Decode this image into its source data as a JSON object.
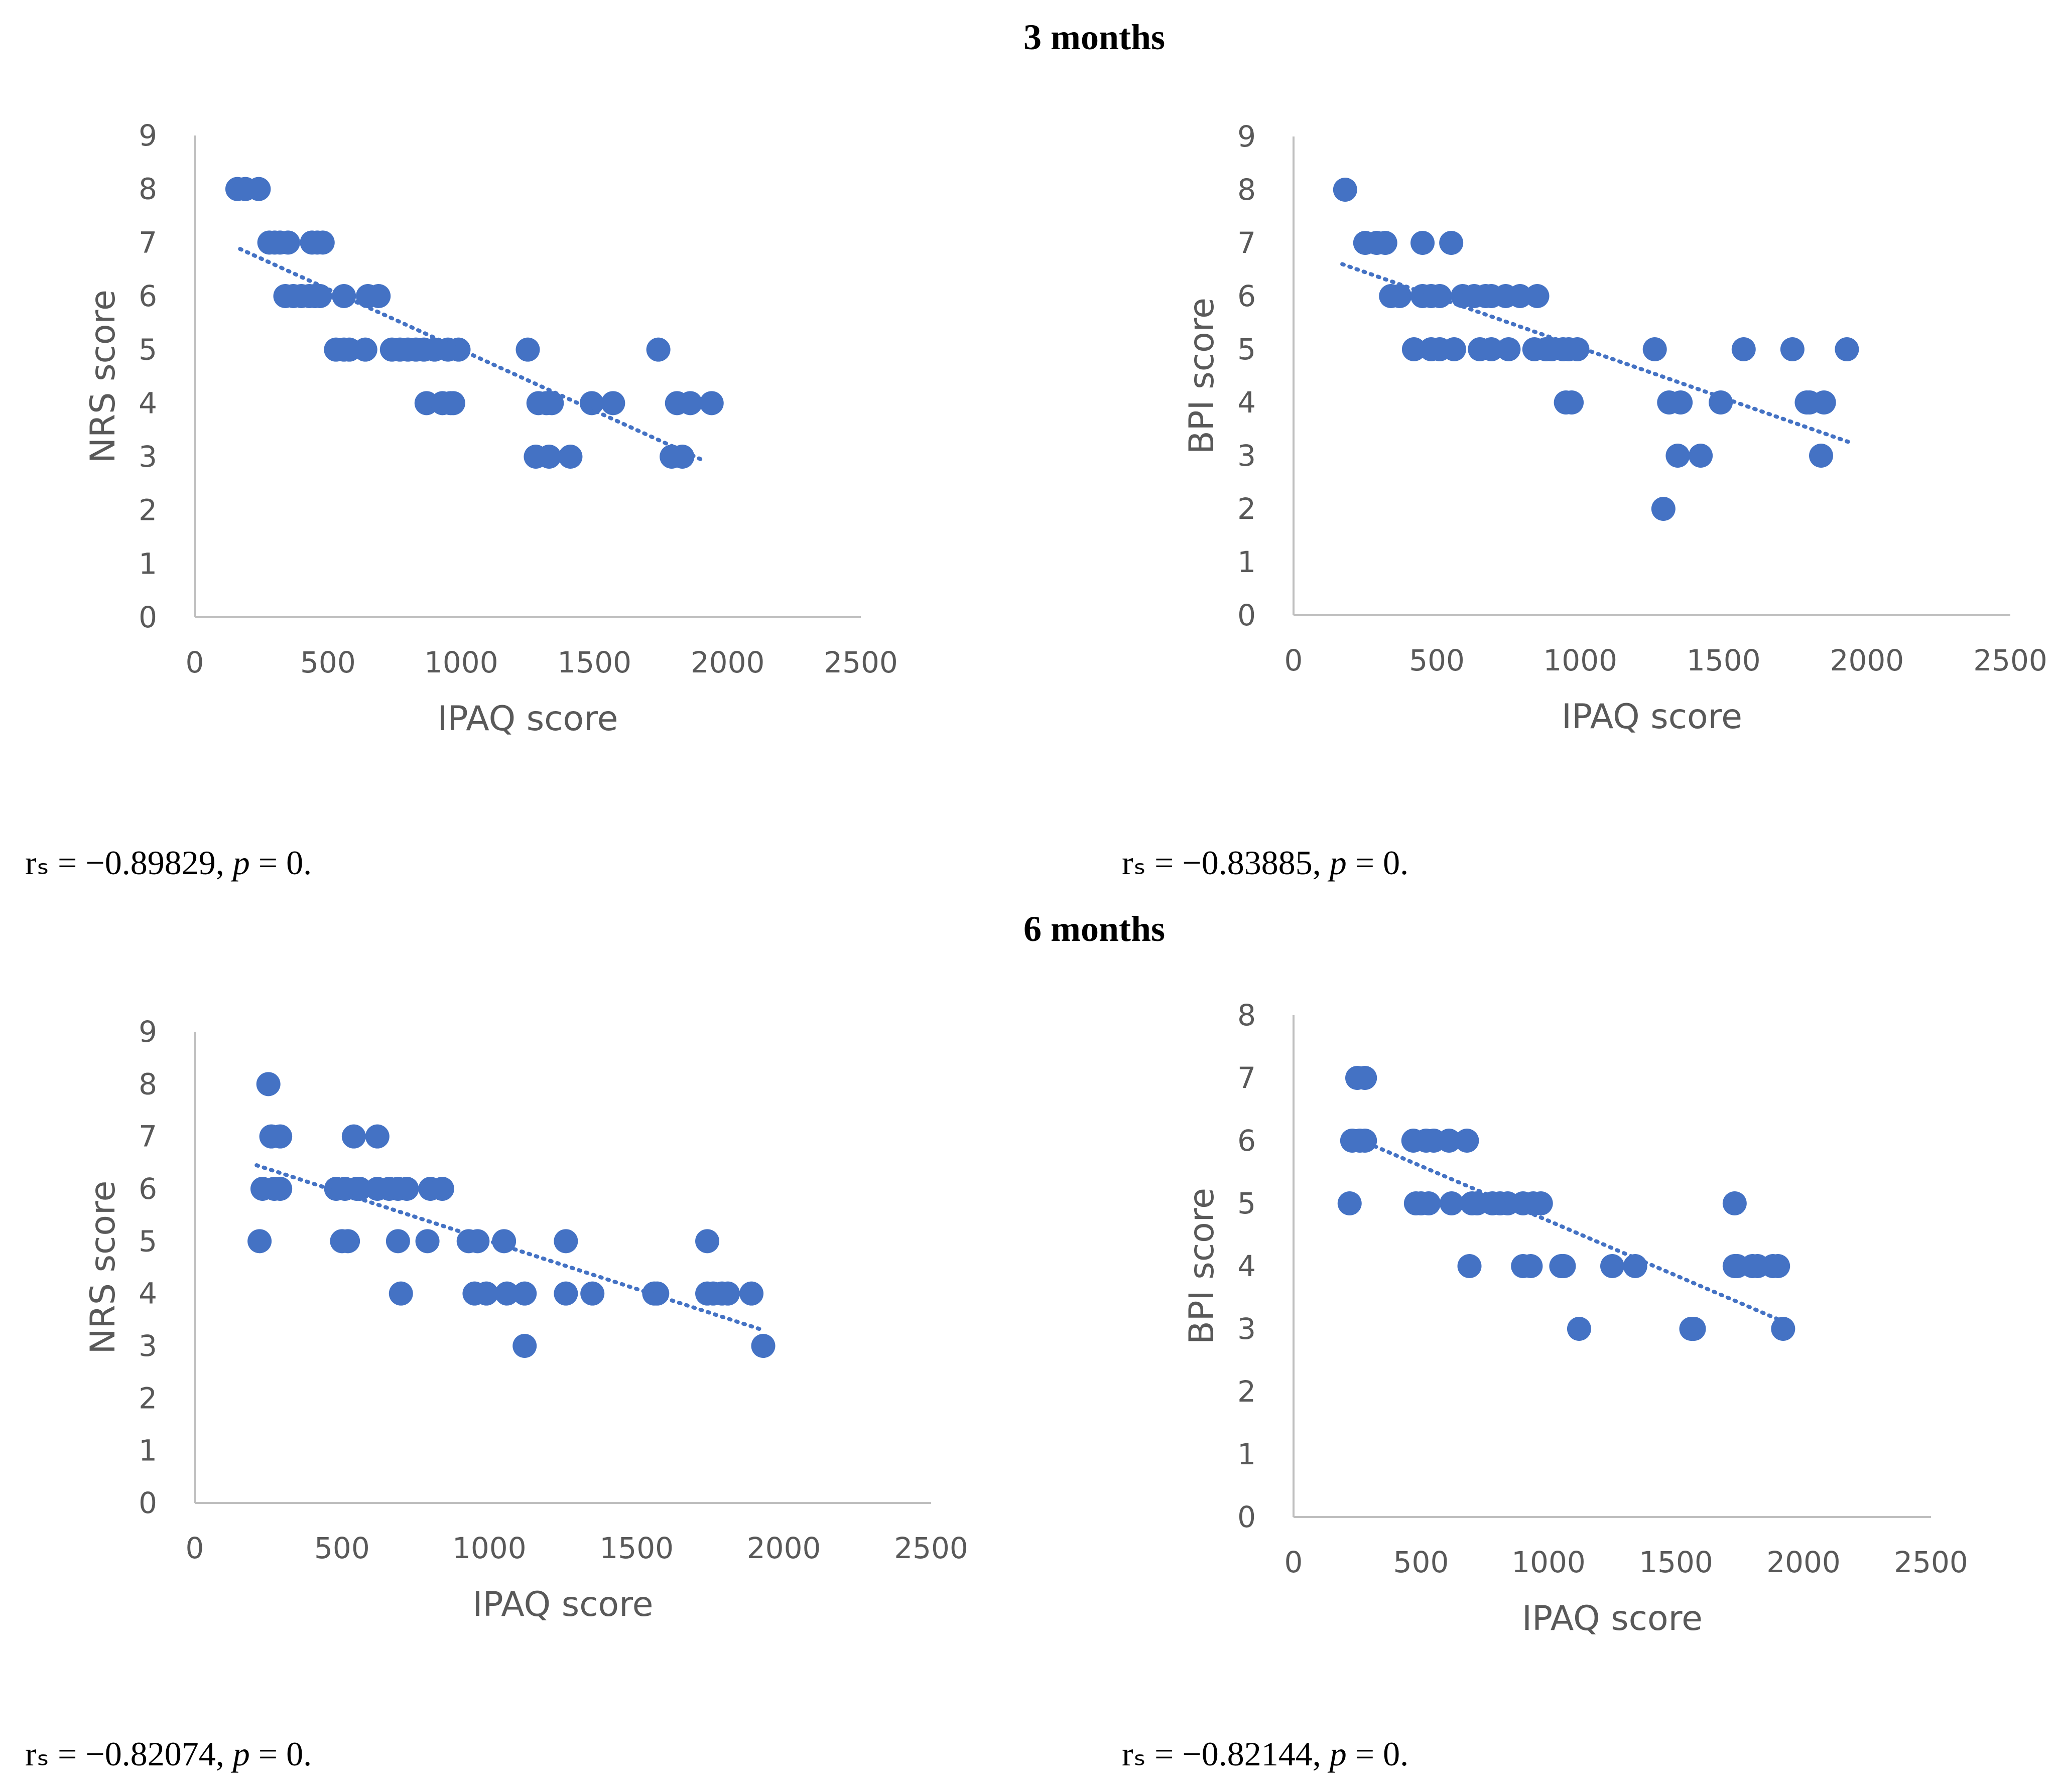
{
  "sections": [
    {
      "title": "3 months"
    },
    {
      "title": "6 months"
    }
  ],
  "colors": {
    "point": "#4472C4",
    "axis": "#BFBFBF",
    "trend": "#4472C4",
    "text": "#595959"
  },
  "chart_data": [
    {
      "type": "scatter",
      "section": "3 months",
      "xlabel": "IPAQ score",
      "ylabel": "NRS score",
      "xlim": [
        0,
        2500
      ],
      "ylim": [
        0,
        9
      ],
      "xticks": [
        0,
        500,
        1000,
        1500,
        2000,
        2500
      ],
      "yticks": [
        0,
        1,
        2,
        3,
        4,
        5,
        6,
        7,
        8,
        9
      ],
      "trendline": {
        "style": "dotted",
        "x": [
          170,
          1900
        ],
        "y": [
          6.88,
          2.95
        ]
      },
      "points": [
        [
          160,
          8
        ],
        [
          190,
          8
        ],
        [
          240,
          8
        ],
        [
          280,
          7
        ],
        [
          300,
          7
        ],
        [
          320,
          7
        ],
        [
          350,
          7
        ],
        [
          340,
          6
        ],
        [
          370,
          6
        ],
        [
          400,
          6
        ],
        [
          430,
          6
        ],
        [
          450,
          6
        ],
        [
          470,
          6
        ],
        [
          440,
          7
        ],
        [
          460,
          7
        ],
        [
          480,
          7
        ],
        [
          530,
          5
        ],
        [
          560,
          6
        ],
        [
          560,
          5
        ],
        [
          580,
          5
        ],
        [
          640,
          5
        ],
        [
          650,
          6
        ],
        [
          690,
          6
        ],
        [
          740,
          5
        ],
        [
          770,
          5
        ],
        [
          800,
          5
        ],
        [
          830,
          5
        ],
        [
          860,
          5
        ],
        [
          870,
          4
        ],
        [
          900,
          5
        ],
        [
          930,
          4
        ],
        [
          950,
          5
        ],
        [
          960,
          4
        ],
        [
          970,
          4
        ],
        [
          990,
          5
        ],
        [
          1250,
          5
        ],
        [
          1280,
          3
        ],
        [
          1290,
          4
        ],
        [
          1320,
          4
        ],
        [
          1330,
          3
        ],
        [
          1340,
          4
        ],
        [
          1410,
          3
        ],
        [
          1490,
          4
        ],
        [
          1570,
          4
        ],
        [
          1740,
          5
        ],
        [
          1790,
          3
        ],
        [
          1810,
          4
        ],
        [
          1830,
          3
        ],
        [
          1860,
          4
        ],
        [
          1940,
          4
        ]
      ],
      "stat": {
        "label": "rₛ = −0.89829, ",
        "p_symbol": "p",
        "p_value": " = 0."
      }
    },
    {
      "type": "scatter",
      "section": "3 months",
      "xlabel": "IPAQ score",
      "ylabel": "BPI score",
      "xlim": [
        0,
        2500
      ],
      "ylim": [
        0,
        9
      ],
      "xticks": [
        0,
        500,
        1000,
        1500,
        2000,
        2500
      ],
      "yticks": [
        0,
        1,
        2,
        3,
        4,
        5,
        6,
        7,
        8,
        9
      ],
      "trendline": {
        "style": "dotted",
        "x": [
          170,
          1940
        ],
        "y": [
          6.6,
          3.25
        ]
      },
      "points": [
        [
          180,
          8
        ],
        [
          250,
          7
        ],
        [
          290,
          7
        ],
        [
          320,
          7
        ],
        [
          340,
          6
        ],
        [
          370,
          6
        ],
        [
          420,
          5
        ],
        [
          450,
          7
        ],
        [
          450,
          6
        ],
        [
          480,
          6
        ],
        [
          480,
          5
        ],
        [
          510,
          6
        ],
        [
          510,
          5
        ],
        [
          550,
          7
        ],
        [
          560,
          5
        ],
        [
          590,
          6
        ],
        [
          630,
          6
        ],
        [
          650,
          5
        ],
        [
          670,
          6
        ],
        [
          690,
          6
        ],
        [
          690,
          5
        ],
        [
          740,
          6
        ],
        [
          750,
          5
        ],
        [
          790,
          6
        ],
        [
          840,
          5
        ],
        [
          850,
          6
        ],
        [
          880,
          5
        ],
        [
          900,
          5
        ],
        [
          940,
          5
        ],
        [
          950,
          4
        ],
        [
          960,
          5
        ],
        [
          970,
          4
        ],
        [
          990,
          5
        ],
        [
          1260,
          5
        ],
        [
          1290,
          2
        ],
        [
          1310,
          4
        ],
        [
          1340,
          3
        ],
        [
          1350,
          4
        ],
        [
          1420,
          3
        ],
        [
          1490,
          4
        ],
        [
          1570,
          5
        ],
        [
          1740,
          5
        ],
        [
          1790,
          4
        ],
        [
          1800,
          4
        ],
        [
          1840,
          3
        ],
        [
          1850,
          4
        ],
        [
          1930,
          5
        ]
      ],
      "stat": {
        "label": "rₛ = −0.83885, ",
        "p_symbol": "p",
        "p_value": " = 0."
      }
    },
    {
      "type": "scatter",
      "section": "6 months",
      "xlabel": "IPAQ score",
      "ylabel": "NRS score",
      "xlim": [
        0,
        2500
      ],
      "ylim": [
        0,
        9
      ],
      "xticks": [
        0,
        500,
        1000,
        1500,
        2000,
        2500
      ],
      "yticks": [
        0,
        1,
        2,
        3,
        4,
        5,
        6,
        7,
        8,
        9
      ],
      "trendline": {
        "style": "dotted",
        "x": [
          210,
          1930
        ],
        "y": [
          6.45,
          3.3
        ]
      },
      "points": [
        [
          220,
          5
        ],
        [
          230,
          6
        ],
        [
          250,
          8
        ],
        [
          260,
          7
        ],
        [
          270,
          6
        ],
        [
          290,
          7
        ],
        [
          290,
          6
        ],
        [
          480,
          6
        ],
        [
          500,
          5
        ],
        [
          510,
          6
        ],
        [
          520,
          5
        ],
        [
          540,
          7
        ],
        [
          550,
          6
        ],
        [
          560,
          6
        ],
        [
          620,
          7
        ],
        [
          620,
          6
        ],
        [
          660,
          6
        ],
        [
          690,
          5
        ],
        [
          690,
          6
        ],
        [
          700,
          4
        ],
        [
          720,
          6
        ],
        [
          790,
          5
        ],
        [
          800,
          6
        ],
        [
          840,
          6
        ],
        [
          930,
          5
        ],
        [
          950,
          4
        ],
        [
          960,
          5
        ],
        [
          990,
          4
        ],
        [
          1050,
          5
        ],
        [
          1060,
          4
        ],
        [
          1120,
          3
        ],
        [
          1120,
          4
        ],
        [
          1260,
          5
        ],
        [
          1260,
          4
        ],
        [
          1350,
          4
        ],
        [
          1560,
          4
        ],
        [
          1570,
          4
        ],
        [
          1740,
          5
        ],
        [
          1740,
          4
        ],
        [
          1760,
          4
        ],
        [
          1790,
          4
        ],
        [
          1810,
          4
        ],
        [
          1890,
          4
        ],
        [
          1930,
          3
        ]
      ],
      "stat": {
        "label": "rₛ = −0.82074, ",
        "p_symbol": "p",
        "p_value": " = 0."
      }
    },
    {
      "type": "scatter",
      "section": "6 months",
      "xlabel": "IPAQ score",
      "ylabel": "BPI score",
      "xlim": [
        0,
        2500
      ],
      "ylim": [
        0,
        8
      ],
      "xticks": [
        0,
        500,
        1000,
        1500,
        2000,
        2500
      ],
      "yticks": [
        0,
        1,
        2,
        3,
        4,
        5,
        6,
        7,
        8
      ],
      "trendline": {
        "style": "dotted",
        "x": [
          210,
          1930
        ],
        "y": [
          6.1,
          3.1
        ]
      },
      "points": [
        [
          220,
          5
        ],
        [
          230,
          6
        ],
        [
          250,
          7
        ],
        [
          260,
          6
        ],
        [
          280,
          7
        ],
        [
          280,
          6
        ],
        [
          470,
          6
        ],
        [
          480,
          5
        ],
        [
          500,
          5
        ],
        [
          520,
          6
        ],
        [
          530,
          5
        ],
        [
          550,
          6
        ],
        [
          610,
          6
        ],
        [
          620,
          5
        ],
        [
          680,
          6
        ],
        [
          690,
          4
        ],
        [
          700,
          5
        ],
        [
          720,
          5
        ],
        [
          780,
          5
        ],
        [
          810,
          5
        ],
        [
          840,
          5
        ],
        [
          900,
          5
        ],
        [
          900,
          4
        ],
        [
          930,
          4
        ],
        [
          940,
          5
        ],
        [
          970,
          5
        ],
        [
          1050,
          4
        ],
        [
          1060,
          4
        ],
        [
          1120,
          3
        ],
        [
          1250,
          4
        ],
        [
          1340,
          4
        ],
        [
          1560,
          3
        ],
        [
          1570,
          3
        ],
        [
          1730,
          5
        ],
        [
          1730,
          4
        ],
        [
          1740,
          4
        ],
        [
          1800,
          4
        ],
        [
          1820,
          4
        ],
        [
          1880,
          4
        ],
        [
          1900,
          4
        ],
        [
          1920,
          3
        ]
      ],
      "stat": {
        "label": "rₛ = −0.82144, ",
        "p_symbol": "p",
        "p_value": " = 0."
      }
    }
  ]
}
